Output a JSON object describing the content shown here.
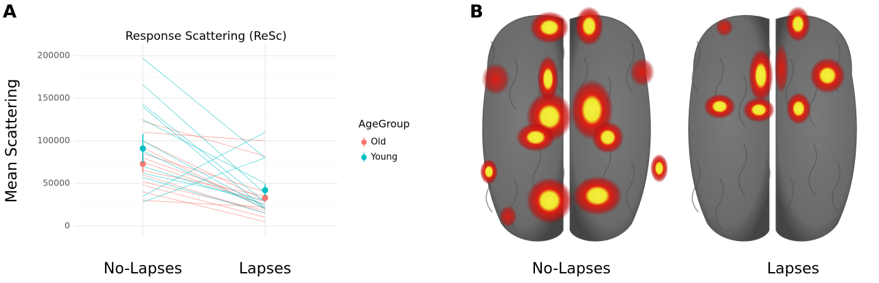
{
  "panels": {
    "a_label": "A",
    "b_label": "B"
  },
  "chart_data": {
    "type": "line",
    "title": "Response Scattering (ReSc)",
    "y_label": "Mean Scattering",
    "categories": [
      "No-Lapses",
      "Lapses"
    ],
    "ylim": [
      -13000,
      213000
    ],
    "yticks": [
      0,
      50000,
      100000,
      150000,
      200000
    ],
    "grid": true,
    "legend_title": "AgeGroup",
    "legend_position": "right",
    "series": [
      {
        "name": "Old",
        "color": "#F8766D",
        "values": [
          73000,
          33000
        ],
        "errors": [
          10000,
          5000
        ],
        "subjects": [
          [
            123000,
            82000
          ],
          [
            110000,
            100000
          ],
          [
            100000,
            30000
          ],
          [
            92000,
            20000
          ],
          [
            85000,
            40000
          ],
          [
            80000,
            28000
          ],
          [
            75000,
            25000
          ],
          [
            65000,
            35000
          ],
          [
            60000,
            15000
          ],
          [
            52000,
            18000
          ],
          [
            48000,
            10000
          ],
          [
            40000,
            5000
          ],
          [
            30000,
            22000
          ]
        ]
      },
      {
        "name": "Young",
        "color": "#00BFC4",
        "values": [
          91000,
          42000
        ],
        "errors": [
          17000,
          7000
        ],
        "subjects": [
          [
            197000,
            80000
          ],
          [
            166000,
            38000
          ],
          [
            143000,
            28000
          ],
          [
            140000,
            20000
          ],
          [
            125000,
            50000
          ],
          [
            100000,
            22000
          ],
          [
            88000,
            20000
          ],
          [
            70000,
            25000
          ],
          [
            62000,
            30000
          ],
          [
            57000,
            15000
          ],
          [
            35000,
            110000
          ],
          [
            28000,
            80000
          ]
        ]
      }
    ]
  },
  "brain": {
    "captions": [
      "No-Lapses",
      "Lapses"
    ]
  }
}
